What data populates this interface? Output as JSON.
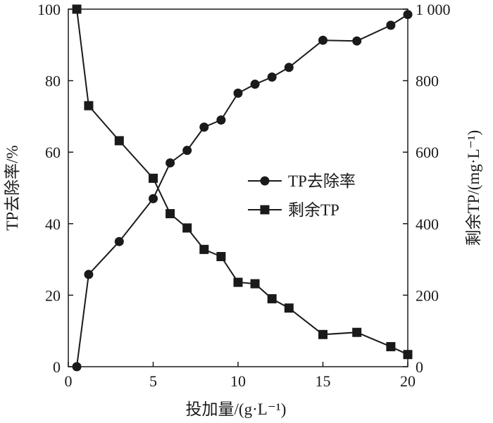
{
  "chart_data": {
    "type": "line",
    "xlabel": "投加量/(g·L⁻¹)",
    "ylabel_left": "TP去除率/%",
    "ylabel_right": "剩余TP/(mg·L⁻¹)",
    "xlim": [
      0,
      20
    ],
    "ylim_left": [
      0,
      100
    ],
    "ylim_right": [
      0,
      1000
    ],
    "x_ticks": [
      "0",
      "5",
      "10",
      "15",
      "20"
    ],
    "y_ticks_left": [
      "0",
      "20",
      "40",
      "60",
      "80",
      "100"
    ],
    "y_ticks_right": [
      "0",
      "200",
      "400",
      "600",
      "800",
      "1 000"
    ],
    "grid": false,
    "legend_position": "center-right",
    "series": [
      {
        "name": "TP去除率",
        "axis": "left",
        "marker": "circle",
        "color": "#1a1a1a",
        "x": [
          0.5,
          1.2,
          3,
          5,
          6,
          7,
          8,
          9,
          10,
          11,
          12,
          13,
          15,
          17,
          19,
          20
        ],
        "y": [
          0,
          25.8,
          35,
          47,
          57,
          60.5,
          67,
          69,
          76.5,
          79,
          81,
          83.7,
          91.3,
          91.1,
          95.5,
          98.5
        ]
      },
      {
        "name": "剩余TP",
        "axis": "right",
        "marker": "square",
        "color": "#1a1a1a",
        "x": [
          0.5,
          1.2,
          3,
          5,
          6,
          7,
          8,
          9,
          10,
          11,
          12,
          13,
          15,
          17,
          19,
          20
        ],
        "y": [
          1000,
          730,
          632,
          527,
          428,
          388,
          328,
          308,
          236,
          232,
          190,
          164,
          90,
          96,
          56,
          34
        ]
      }
    ]
  }
}
